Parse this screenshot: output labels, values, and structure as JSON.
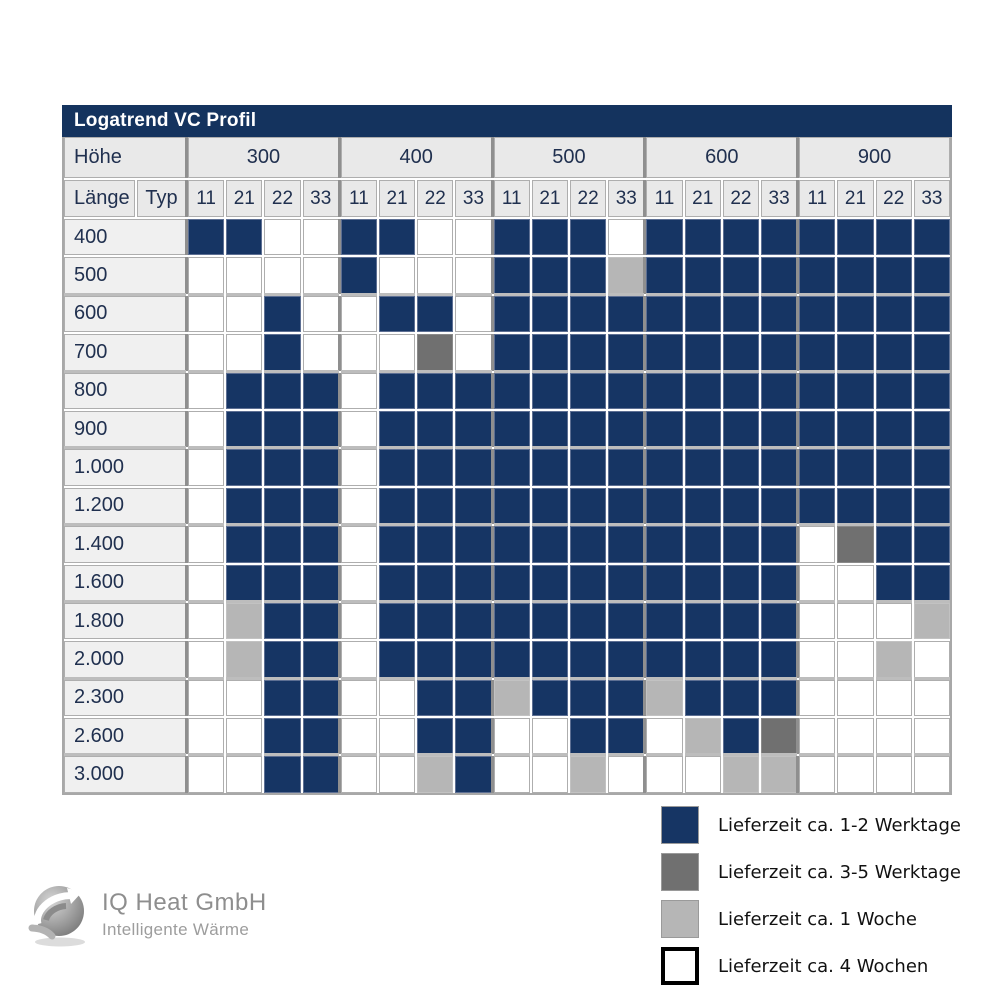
{
  "title": "Logatrend VC Profil",
  "matrix": {
    "hoehe_label": "Höhe",
    "laenge_label": "Länge",
    "typ_label": "Typ",
    "heights": [
      "300",
      "400",
      "500",
      "600",
      "900"
    ],
    "types": [
      "11",
      "21",
      "22",
      "33"
    ]
  },
  "chart_data": {
    "type": "heatmap",
    "title": "Logatrend VC Profil",
    "x_label": "Höhe",
    "y_label": "Länge",
    "sub_label": "Typ",
    "x_groups": [
      "300",
      "400",
      "500",
      "600",
      "900"
    ],
    "x_subcolumns": [
      "11",
      "21",
      "22",
      "33"
    ],
    "y_categories": [
      "400",
      "500",
      "600",
      "700",
      "800",
      "900",
      "1.000",
      "1.200",
      "1.400",
      "1.600",
      "1.800",
      "2.000",
      "2.300",
      "2.600",
      "3.000"
    ],
    "value_meaning": {
      "0": "Lieferzeit ca. 4 Wochen",
      "1": "Lieferzeit ca. 1-2 Werktage",
      "2": "Lieferzeit ca. 3-5 Werktage",
      "3": "Lieferzeit ca. 1 Woche"
    },
    "cells": [
      [
        1,
        1,
        0,
        0,
        1,
        1,
        0,
        0,
        1,
        1,
        1,
        0,
        1,
        1,
        1,
        1,
        1,
        1,
        1,
        1
      ],
      [
        0,
        0,
        0,
        0,
        1,
        0,
        0,
        0,
        1,
        1,
        1,
        3,
        1,
        1,
        1,
        1,
        1,
        1,
        1,
        1
      ],
      [
        0,
        0,
        1,
        0,
        0,
        1,
        1,
        0,
        1,
        1,
        1,
        1,
        1,
        1,
        1,
        1,
        1,
        1,
        1,
        1
      ],
      [
        0,
        0,
        1,
        0,
        0,
        0,
        2,
        0,
        1,
        1,
        1,
        1,
        1,
        1,
        1,
        1,
        1,
        1,
        1,
        1
      ],
      [
        0,
        1,
        1,
        1,
        0,
        1,
        1,
        1,
        1,
        1,
        1,
        1,
        1,
        1,
        1,
        1,
        1,
        1,
        1,
        1
      ],
      [
        0,
        1,
        1,
        1,
        0,
        1,
        1,
        1,
        1,
        1,
        1,
        1,
        1,
        1,
        1,
        1,
        1,
        1,
        1,
        1
      ],
      [
        0,
        1,
        1,
        1,
        0,
        1,
        1,
        1,
        1,
        1,
        1,
        1,
        1,
        1,
        1,
        1,
        1,
        1,
        1,
        1
      ],
      [
        0,
        1,
        1,
        1,
        0,
        1,
        1,
        1,
        1,
        1,
        1,
        1,
        1,
        1,
        1,
        1,
        1,
        1,
        1,
        1
      ],
      [
        0,
        1,
        1,
        1,
        0,
        1,
        1,
        1,
        1,
        1,
        1,
        1,
        1,
        1,
        1,
        1,
        0,
        2,
        1,
        1
      ],
      [
        0,
        1,
        1,
        1,
        0,
        1,
        1,
        1,
        1,
        1,
        1,
        1,
        1,
        1,
        1,
        1,
        0,
        0,
        1,
        1
      ],
      [
        0,
        3,
        1,
        1,
        0,
        1,
        1,
        1,
        1,
        1,
        1,
        1,
        1,
        1,
        1,
        1,
        0,
        0,
        0,
        3
      ],
      [
        0,
        3,
        1,
        1,
        0,
        1,
        1,
        1,
        1,
        1,
        1,
        1,
        1,
        1,
        1,
        1,
        0,
        0,
        3,
        0
      ],
      [
        0,
        0,
        1,
        1,
        0,
        0,
        1,
        1,
        3,
        1,
        1,
        1,
        3,
        1,
        1,
        1,
        0,
        0,
        0,
        0
      ],
      [
        0,
        0,
        1,
        1,
        0,
        0,
        1,
        1,
        0,
        0,
        1,
        1,
        0,
        3,
        1,
        2,
        0,
        0,
        0,
        0
      ],
      [
        0,
        0,
        1,
        1,
        0,
        0,
        3,
        1,
        0,
        0,
        3,
        0,
        0,
        0,
        3,
        3,
        0,
        0,
        0,
        0
      ]
    ]
  },
  "legend": {
    "items": [
      {
        "code": 1,
        "color": "#163564",
        "label": "Lieferzeit ca. 1-2 Werktage"
      },
      {
        "code": 2,
        "color": "#707070",
        "label": "Lieferzeit ca. 3-5 Werktage"
      },
      {
        "code": 3,
        "color": "#b6b6b6",
        "label": "Lieferzeit ca. 1 Woche"
      },
      {
        "code": 0,
        "color": "#ffffff",
        "label": "Lieferzeit ca. 4 Wochen"
      }
    ]
  },
  "logo": {
    "company": "IQ Heat GmbH",
    "tagline": "Intelligente Wärme"
  },
  "colors": {
    "title_bg": "#14335e",
    "navy": "#163564",
    "dark_gray": "#707070",
    "light_gray": "#b6b6b6",
    "white": "#ffffff",
    "header_bg": "#e9e9e9",
    "row_label_bg": "#f0f0f0",
    "grid_line": "#aeaeae",
    "group_line": "#8f8f8f"
  }
}
